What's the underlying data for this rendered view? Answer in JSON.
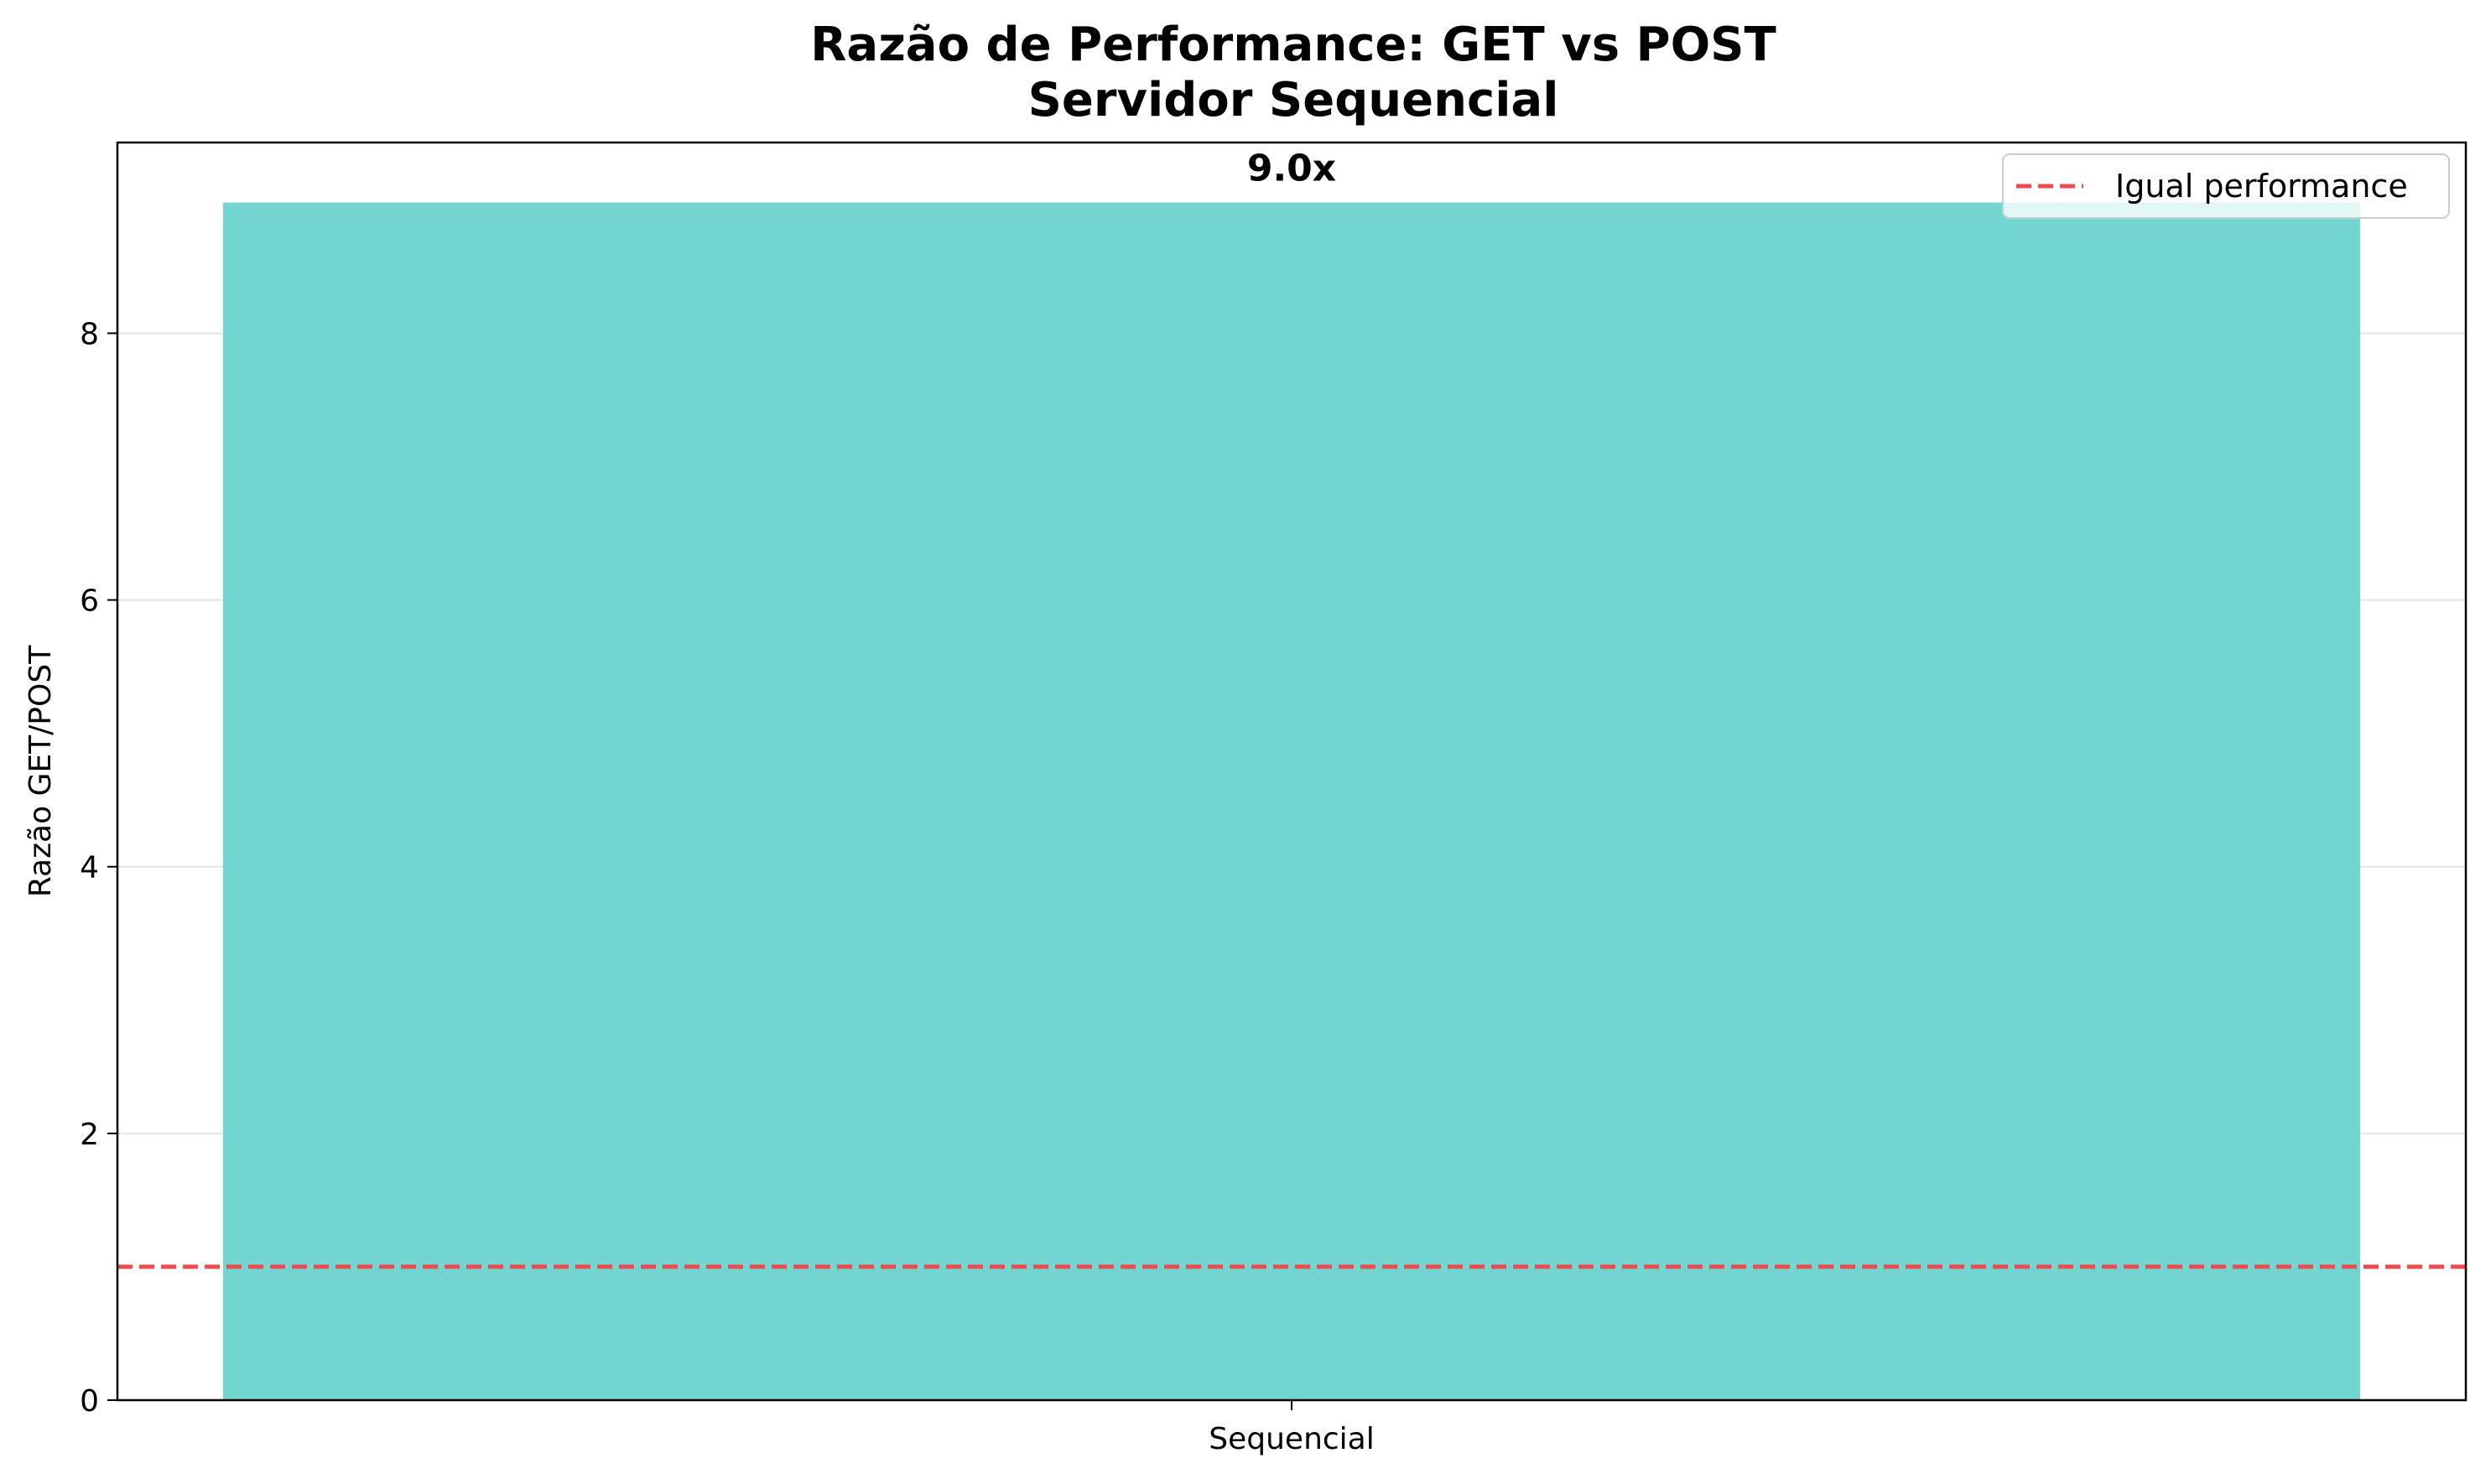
{
  "chart_data": {
    "type": "bar",
    "title": "Razão de Performance: GET vs POST",
    "subtitle": "Servidor Sequencial",
    "categories": [
      "Sequencial"
    ],
    "values": [
      8.98
    ],
    "value_labels": [
      "9.0x"
    ],
    "xlabel": "",
    "ylabel": "Razão GET/POST",
    "ylim": [
      0,
      9.43
    ],
    "yticks": [
      0,
      2,
      4,
      6,
      8
    ],
    "ytick_labels": [
      "0",
      "2",
      "4",
      "6",
      "8"
    ],
    "grid": "y",
    "reference_line": {
      "y": 1,
      "label": "Igual performance",
      "style": "dashed"
    },
    "legend": {
      "position": "top-right",
      "entries": [
        "Igual performance"
      ]
    },
    "colors": {
      "bar": "#72d5cf",
      "reference_line": "#ee4b4f"
    }
  }
}
